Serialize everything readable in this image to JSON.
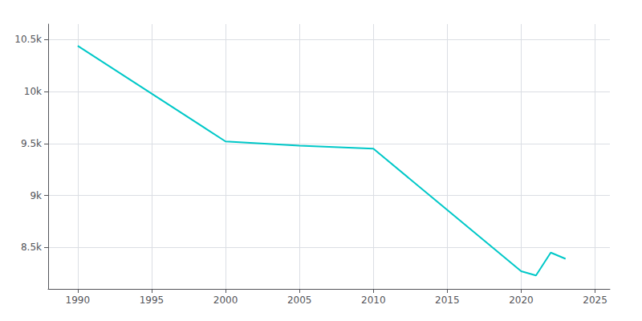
{
  "chart_data": {
    "type": "line",
    "x": [
      1990,
      2000,
      2005,
      2010,
      2020,
      2021,
      2022,
      2023
    ],
    "values": [
      10440,
      9520,
      9480,
      9450,
      8270,
      8230,
      8450,
      8390
    ],
    "color": "#00C8C8",
    "xlim": [
      1988,
      2026
    ],
    "xticks": [
      1990,
      1995,
      2000,
      2005,
      2010,
      2015,
      2020,
      2025
    ],
    "ylim": [
      8100,
      10650
    ],
    "yticks": [
      {
        "value": 8500,
        "label": "8.5k"
      },
      {
        "value": 9000,
        "label": "9k"
      },
      {
        "value": 9500,
        "label": "9.5k"
      },
      {
        "value": 10000,
        "label": "10k"
      },
      {
        "value": 10500,
        "label": "10.5k"
      }
    ],
    "grid": true
  }
}
